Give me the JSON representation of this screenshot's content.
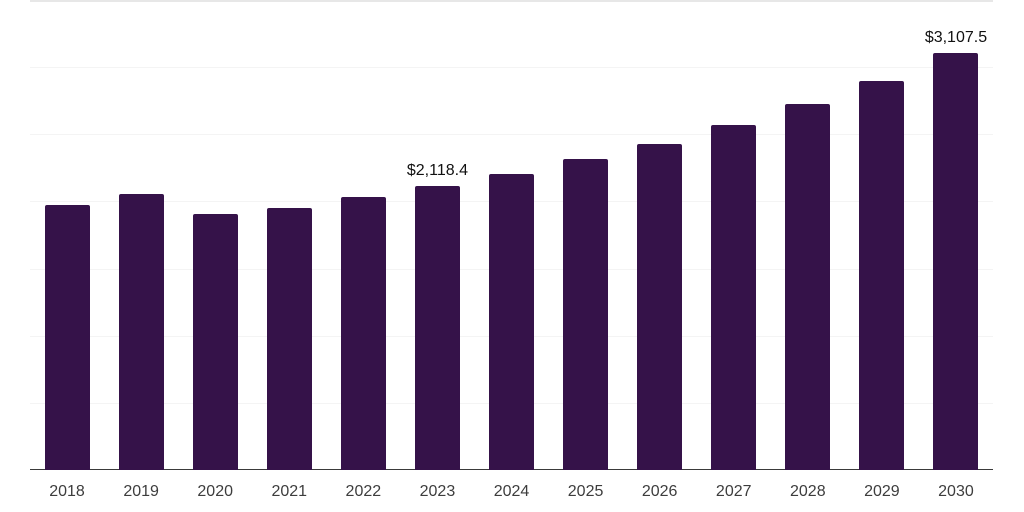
{
  "chart_data": {
    "type": "bar",
    "title": "",
    "xlabel": "",
    "ylabel": "",
    "categories": [
      "2018",
      "2019",
      "2020",
      "2021",
      "2022",
      "2023",
      "2024",
      "2025",
      "2026",
      "2027",
      "2028",
      "2029",
      "2030"
    ],
    "values": [
      1975,
      2055,
      1910,
      1950,
      2030,
      2118.4,
      2205,
      2315,
      2430,
      2570,
      2725,
      2900,
      3107.5
    ],
    "point_labels": {
      "2023": "$2,118.4",
      "2030": "$3,107.5"
    },
    "ylim": [
      0,
      3500
    ],
    "grid_step": 500,
    "grid": "horizontal gridlines only, no y-axis tick labels",
    "legend": "none",
    "colors": {
      "bar": "#351249",
      "gridline": "#f4f4f4",
      "top_border": "#e7e7e7",
      "axis_line": "#3a3a3a",
      "tick_label": "#3d3d3d",
      "data_label": "#111111",
      "background": "#ffffff"
    }
  }
}
